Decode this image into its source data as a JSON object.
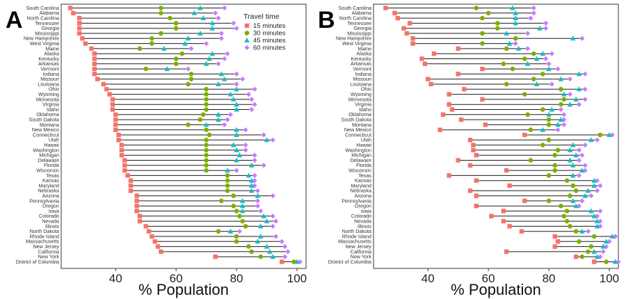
{
  "chart_data": [
    {
      "panel_label": "A",
      "type": "dot-range",
      "xlabel": "% Population",
      "xlim": [
        22,
        103
      ],
      "xticks": [
        40,
        60,
        80,
        100
      ],
      "grid": false,
      "legend": {
        "title": "Travel time",
        "placement": "top-right",
        "entries": [
          {
            "name": "15 minutes",
            "marker": "square",
            "color": "#f4736b"
          },
          {
            "name": "30 minutes",
            "marker": "circle",
            "color": "#7cae00"
          },
          {
            "name": "45 minutes",
            "marker": "triangle",
            "color": "#18bcc4"
          },
          {
            "name": "60 minutes",
            "marker": "diamond",
            "color": "#c77cff"
          }
        ]
      },
      "categories": [
        "South Carolina",
        "Alabama",
        "North Carolina",
        "Tennessee",
        "Georgia",
        "Mississippi",
        "New Hampshire",
        "West Virginia",
        "Maine",
        "Alaska",
        "Kentucky",
        "Arkansas",
        "Vermont",
        "Indiana",
        "Missouri",
        "Louisiana",
        "Ohio",
        "Wyoming",
        "Minnesota",
        "Virginia",
        "Idaho",
        "Oklahoma",
        "South Dakota",
        "Montana",
        "New Mexico",
        "Connecticut",
        "Utah",
        "Hawaii",
        "Washington",
        "Michigan",
        "Delaware",
        "Florida",
        "Wisconsin",
        "Texas",
        "Kansas",
        "Maryland",
        "Nebraska",
        "Arizona",
        "Pennsylvania",
        "Oregon",
        "Iowa",
        "Colorado",
        "Nevada",
        "Illinois",
        "North Dakota",
        "Rhode Island",
        "Massachusetts",
        "New Jersey",
        "California",
        "New York",
        "District of Columbia"
      ],
      "series": [
        {
          "name": "15 minutes",
          "values": [
            25,
            26,
            28,
            28,
            28,
            28,
            29,
            30,
            32,
            33,
            33,
            33,
            33,
            33,
            34,
            36,
            37,
            38,
            39,
            39,
            39,
            40,
            40,
            40,
            40,
            41,
            41,
            42,
            42,
            42,
            43,
            43,
            43,
            44,
            45,
            45,
            45,
            47,
            47,
            47,
            47,
            48,
            48,
            50,
            51,
            52,
            53,
            54,
            55,
            73,
            95
          ]
        },
        {
          "name": "30 minutes",
          "values": [
            55,
            55,
            58,
            60,
            60,
            55,
            52,
            52,
            48,
            62,
            60,
            60,
            50,
            65,
            65,
            64,
            70,
            70,
            70,
            70,
            70,
            69,
            68,
            64,
            70,
            71,
            70,
            70,
            70,
            70,
            70,
            70,
            70,
            77,
            77,
            77,
            77,
            79,
            75,
            79,
            80,
            81,
            82,
            83,
            74,
            80,
            80,
            84,
            85,
            88,
            99
          ]
        },
        {
          "name": "45 minutes",
          "values": [
            68,
            66,
            69,
            72,
            72,
            68,
            64,
            63,
            56,
            72,
            71,
            70,
            57,
            75,
            76,
            74,
            80,
            78,
            79,
            80,
            80,
            74,
            74,
            70,
            80,
            80,
            90,
            79,
            80,
            81,
            80,
            85,
            77,
            84,
            85,
            85,
            85,
            87,
            82,
            82,
            82,
            89,
            90,
            88,
            78,
            88,
            87,
            90,
            91,
            92,
            100
          ]
        },
        {
          "name": "60 minutes",
          "values": [
            76,
            73,
            74,
            79,
            80,
            75,
            75,
            70,
            65,
            77,
            76,
            74,
            64,
            80,
            82,
            80,
            86,
            84,
            85,
            86,
            85,
            78,
            77,
            76,
            83,
            89,
            92,
            83,
            83,
            86,
            86,
            89,
            80,
            86,
            86,
            86,
            87,
            92,
            87,
            87,
            88,
            92,
            93,
            92,
            81,
            93,
            95,
            96,
            97,
            96,
            101
          ]
        }
      ]
    },
    {
      "panel_label": "B",
      "type": "dot-range",
      "xlabel": "% Population",
      "xlim": [
        22,
        103
      ],
      "xticks": [
        40,
        60,
        80,
        100
      ],
      "grid": false,
      "categories": [
        "South Carolina",
        "Alabama",
        "North Carolina",
        "Tennessee",
        "Georgia",
        "Mississippi",
        "New Hampshire",
        "West Virginia",
        "Maine",
        "Alaska",
        "Kentucky",
        "Arkansas",
        "Vermont",
        "Indiana",
        "Missouri",
        "Louisiana",
        "Ohio",
        "Wyoming",
        "Minnesota",
        "Virginia",
        "Idaho",
        "Oklahoma",
        "South Dakota",
        "Montana",
        "New Mexico",
        "Connecticut",
        "Utah",
        "Hawaii",
        "Washington",
        "Michigan",
        "Delaware",
        "Florida",
        "Wisconsin",
        "Texas",
        "Kansas",
        "Maryland",
        "Nebraska",
        "Arizona",
        "Pennsylvania",
        "Oregon",
        "Iowa",
        "Colorado",
        "Nevada",
        "Illinois",
        "North Dakota",
        "Rhode Island",
        "Massachusetts",
        "New Jersey",
        "California",
        "New York",
        "District of Columbia"
      ],
      "series": [
        {
          "name": "15 minutes",
          "values": [
            26,
            29,
            30,
            34,
            32,
            33,
            35,
            35,
            50,
            42,
            38,
            39,
            58,
            50,
            40,
            41,
            52,
            47,
            58,
            47,
            48,
            45,
            51,
            59,
            44,
            72,
            54,
            55,
            55,
            56,
            50,
            54,
            66,
            47,
            56,
            67,
            54,
            56,
            72,
            56,
            65,
            61,
            65,
            67,
            71,
            82,
            83,
            82,
            66,
            89,
            95
          ]
        },
        {
          "name": "30 minutes",
          "values": [
            56,
            60,
            58,
            63,
            63,
            58,
            69,
            58,
            66,
            75,
            72,
            65,
            68,
            78,
            75,
            66,
            84,
            72,
            85,
            84,
            78,
            73,
            80,
            80,
            74,
            97,
            80,
            78,
            83,
            82,
            74,
            82,
            82,
            80,
            86,
            88,
            89,
            87,
            80,
            84,
            86,
            85,
            86,
            87,
            89,
            95,
            90,
            94,
            93,
            91,
            99
          ]
        },
        {
          "name": "45 minutes",
          "values": [
            68,
            69,
            69,
            69,
            77,
            66,
            88,
            67,
            70,
            78,
            76,
            73,
            80,
            90,
            84,
            76,
            90,
            85,
            89,
            87,
            81,
            80,
            84,
            83,
            78,
            100,
            94,
            88,
            87,
            89,
            87,
            88,
            91,
            88,
            95,
            95,
            93,
            92,
            88,
            89,
            94,
            95,
            96,
            96,
            91,
            101,
            99,
            98,
            95,
            96,
            102
          ]
        },
        {
          "name": "60 minutes",
          "values": [
            75,
            75,
            74,
            79,
            79,
            73,
            91,
            69,
            73,
            81,
            79,
            80,
            83,
            92,
            87,
            81,
            92,
            87,
            92,
            90,
            84,
            85,
            85,
            85,
            83,
            101,
            96,
            92,
            90,
            91,
            90,
            92,
            92,
            90,
            96,
            97,
            96,
            94,
            91,
            90,
            97,
            96,
            97,
            97,
            93,
            102,
            100,
            99,
            98,
            97,
            103
          ]
        }
      ]
    }
  ]
}
